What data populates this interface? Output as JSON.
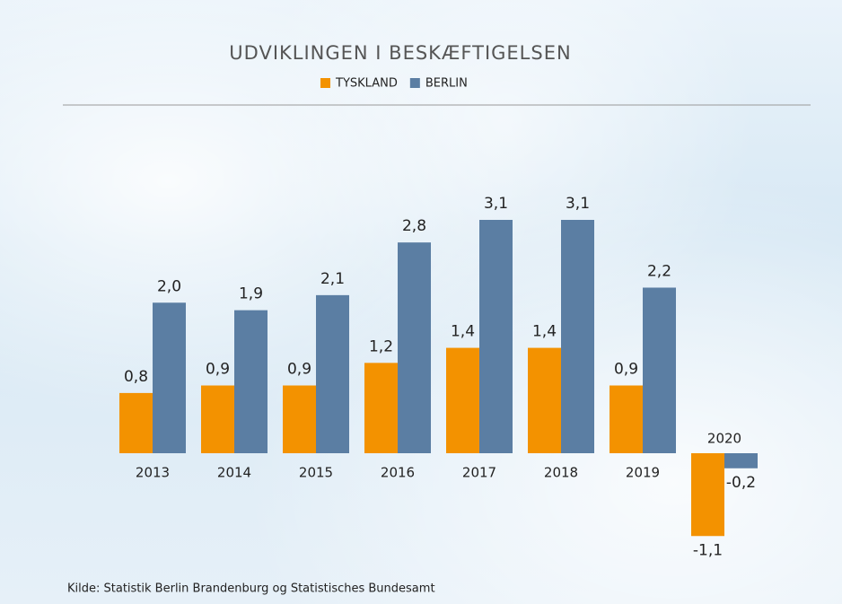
{
  "chart_data": {
    "type": "bar",
    "title": "UDVIKLINGEN I BESKÆFTIGELSEN",
    "source": "Kilde: Statistik Berlin Brandenburg og Statistisches Bundesamt",
    "categories": [
      "2013",
      "2014",
      "2015",
      "2016",
      "2017",
      "2018",
      "2019",
      "2020"
    ],
    "series": [
      {
        "name": "TYSKLAND",
        "color": "#f39200",
        "values": [
          0.8,
          0.9,
          0.9,
          1.2,
          1.4,
          1.4,
          0.9,
          -1.1
        ],
        "value_labels": [
          "0,8",
          "0,9",
          "0,9",
          "1,2",
          "1,4",
          "1,4",
          "0,9",
          "-1,1"
        ]
      },
      {
        "name": "BERLIN",
        "color": "#5b7ea3",
        "values": [
          2.0,
          1.9,
          2.1,
          2.8,
          3.1,
          3.1,
          2.2,
          -0.2
        ],
        "value_labels": [
          "2,0",
          "1,9",
          "2,1",
          "2,8",
          "3,1",
          "3,1",
          "2,2",
          "-0,2"
        ]
      }
    ]
  }
}
